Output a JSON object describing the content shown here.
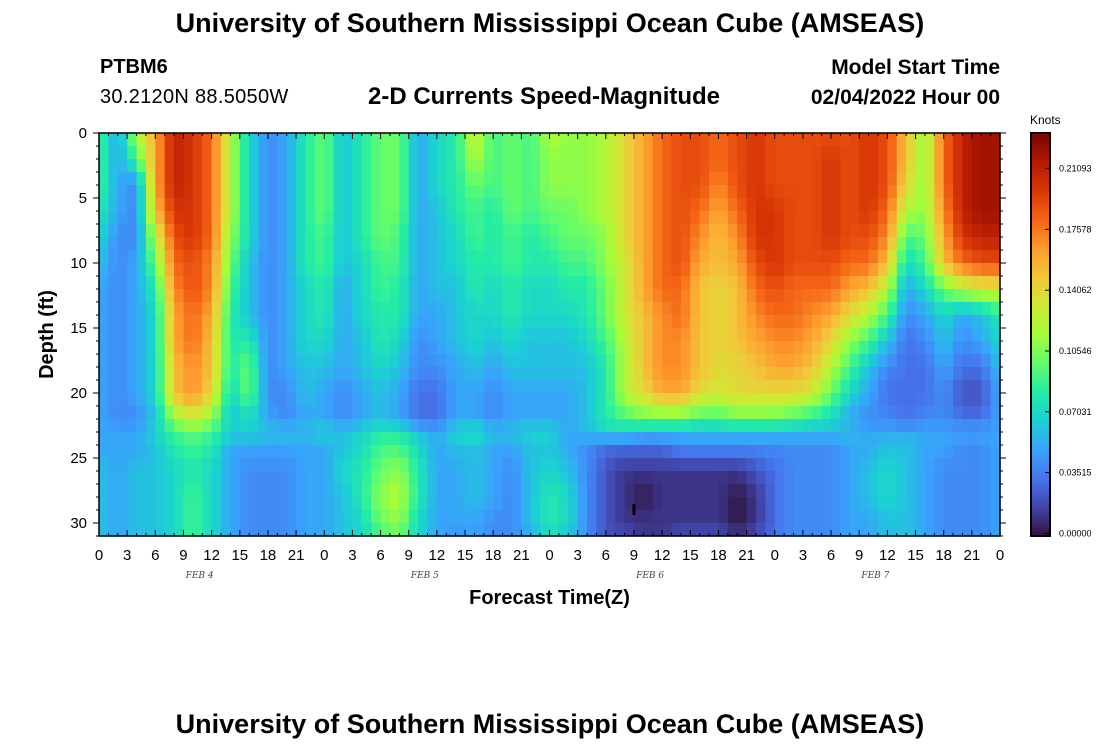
{
  "page": {
    "header_title": "University of Southern Mississippi Ocean Cube (AMSEAS)",
    "footer_title": "University of Southern Mississippi Ocean Cube (AMSEAS)",
    "station_id": "PTBM6",
    "station_coords": "30.2120N  88.5050W",
    "model_start_label": "Model Start Time",
    "model_start_value": "02/04/2022 Hour 00"
  },
  "colors": {
    "colormap": [
      "#30123b",
      "#4145ab",
      "#4675ed",
      "#39a2fc",
      "#1bcfd4",
      "#24eca6",
      "#61fc6c",
      "#a4fc3b",
      "#d1e834",
      "#f3c63a",
      "#fe9b2d",
      "#f36315",
      "#d93806",
      "#b11901",
      "#7a0402"
    ]
  },
  "chart_data": {
    "type": "heatmap",
    "title": "2-D Currents Speed-Magnitude",
    "xlabel": "Forecast Time(Z)",
    "ylabel": "Depth (ft)",
    "colorbar_label": "Knots",
    "x_tick_labels": [
      "0",
      "3",
      "6",
      "9",
      "12",
      "15",
      "18",
      "21",
      "0",
      "3",
      "6",
      "9",
      "12",
      "15",
      "18",
      "21",
      "0",
      "3",
      "6",
      "9",
      "12",
      "15",
      "18",
      "21",
      "0",
      "3",
      "6",
      "9",
      "12",
      "15",
      "18",
      "21",
      "0"
    ],
    "x_range_hours": [
      0,
      96
    ],
    "day_labels": [
      {
        "label": "FEB 4",
        "hour": 12
      },
      {
        "label": "FEB 5",
        "hour": 36
      },
      {
        "label": "FEB 6",
        "hour": 60
      },
      {
        "label": "FEB 7",
        "hour": 84
      }
    ],
    "y_ticks": [
      0,
      5,
      10,
      15,
      20,
      25,
      30
    ],
    "y_range": [
      0,
      31
    ],
    "colorbar_ticks": [
      "0.21093",
      "0.17578",
      "0.14062",
      "0.10546",
      "0.07031",
      "0.03515",
      "0.00000"
    ],
    "colorbar_tick_values": [
      0.21093,
      0.17578,
      0.14062,
      0.10546,
      0.07031,
      0.03515,
      0.0
    ],
    "colorbar_range": [
      -0.0015,
      0.2315
    ],
    "depth_levels_ft": [
      0,
      2,
      4,
      6,
      8,
      10,
      12,
      14,
      16,
      18,
      20,
      22,
      23,
      24,
      26,
      28,
      30,
      31
    ],
    "time_hours": [
      0,
      2,
      4,
      6,
      8,
      10,
      12,
      14,
      16,
      18,
      20,
      22,
      24,
      26,
      28,
      30,
      32,
      34,
      36,
      38,
      40,
      42,
      44,
      46,
      48,
      50,
      52,
      54,
      56,
      58,
      60,
      62,
      64,
      66,
      68,
      70,
      72,
      74,
      76,
      78,
      80,
      82,
      84,
      86,
      88,
      90,
      92,
      94,
      96
    ],
    "speed_knots_rows": [
      [
        0.09,
        0.05,
        0.12,
        0.16,
        0.21,
        0.2,
        0.18,
        0.12,
        0.07,
        0.04,
        0.05,
        0.08,
        0.1,
        0.06,
        0.08,
        0.1,
        0.1,
        0.05,
        0.07,
        0.08,
        0.13,
        0.09,
        0.1,
        0.09,
        0.12,
        0.11,
        0.11,
        0.12,
        0.14,
        0.16,
        0.18,
        0.19,
        0.19,
        0.18,
        0.19,
        0.2,
        0.19,
        0.19,
        0.19,
        0.19,
        0.19,
        0.2,
        0.19,
        0.15,
        0.11,
        0.18,
        0.21,
        0.22,
        0.22
      ],
      [
        0.09,
        0.05,
        0.09,
        0.16,
        0.21,
        0.2,
        0.18,
        0.12,
        0.07,
        0.04,
        0.05,
        0.08,
        0.1,
        0.06,
        0.08,
        0.1,
        0.1,
        0.05,
        0.07,
        0.08,
        0.12,
        0.09,
        0.1,
        0.09,
        0.11,
        0.11,
        0.11,
        0.12,
        0.14,
        0.16,
        0.18,
        0.19,
        0.19,
        0.18,
        0.19,
        0.2,
        0.19,
        0.19,
        0.19,
        0.2,
        0.19,
        0.2,
        0.19,
        0.15,
        0.11,
        0.18,
        0.21,
        0.22,
        0.22
      ],
      [
        0.09,
        0.05,
        0.04,
        0.16,
        0.21,
        0.2,
        0.18,
        0.12,
        0.07,
        0.04,
        0.05,
        0.08,
        0.1,
        0.06,
        0.08,
        0.1,
        0.1,
        0.05,
        0.07,
        0.08,
        0.1,
        0.09,
        0.1,
        0.09,
        0.11,
        0.11,
        0.11,
        0.12,
        0.14,
        0.16,
        0.18,
        0.19,
        0.19,
        0.17,
        0.19,
        0.2,
        0.19,
        0.19,
        0.19,
        0.2,
        0.19,
        0.2,
        0.19,
        0.14,
        0.11,
        0.18,
        0.21,
        0.22,
        0.22
      ],
      [
        0.08,
        0.05,
        0.04,
        0.15,
        0.2,
        0.2,
        0.18,
        0.12,
        0.07,
        0.04,
        0.05,
        0.08,
        0.1,
        0.06,
        0.08,
        0.1,
        0.1,
        0.05,
        0.06,
        0.08,
        0.09,
        0.08,
        0.1,
        0.09,
        0.1,
        0.1,
        0.11,
        0.12,
        0.14,
        0.16,
        0.18,
        0.19,
        0.18,
        0.16,
        0.18,
        0.2,
        0.2,
        0.19,
        0.19,
        0.2,
        0.19,
        0.2,
        0.18,
        0.12,
        0.11,
        0.17,
        0.21,
        0.22,
        0.22
      ],
      [
        0.07,
        0.04,
        0.04,
        0.12,
        0.19,
        0.2,
        0.18,
        0.11,
        0.07,
        0.04,
        0.05,
        0.08,
        0.09,
        0.06,
        0.08,
        0.1,
        0.09,
        0.05,
        0.06,
        0.07,
        0.09,
        0.08,
        0.09,
        0.08,
        0.09,
        0.1,
        0.1,
        0.11,
        0.14,
        0.16,
        0.18,
        0.19,
        0.17,
        0.15,
        0.17,
        0.2,
        0.2,
        0.19,
        0.19,
        0.2,
        0.19,
        0.19,
        0.17,
        0.09,
        0.1,
        0.16,
        0.2,
        0.21,
        0.21
      ],
      [
        0.06,
        0.04,
        0.05,
        0.1,
        0.18,
        0.19,
        0.17,
        0.1,
        0.06,
        0.04,
        0.05,
        0.08,
        0.09,
        0.06,
        0.07,
        0.09,
        0.09,
        0.05,
        0.06,
        0.07,
        0.08,
        0.08,
        0.09,
        0.08,
        0.08,
        0.09,
        0.09,
        0.11,
        0.13,
        0.16,
        0.18,
        0.19,
        0.16,
        0.15,
        0.16,
        0.19,
        0.2,
        0.19,
        0.19,
        0.19,
        0.18,
        0.18,
        0.15,
        0.07,
        0.09,
        0.15,
        0.18,
        0.19,
        0.19
      ],
      [
        0.05,
        0.04,
        0.05,
        0.08,
        0.17,
        0.19,
        0.17,
        0.09,
        0.06,
        0.04,
        0.05,
        0.07,
        0.08,
        0.05,
        0.07,
        0.09,
        0.08,
        0.05,
        0.06,
        0.06,
        0.08,
        0.07,
        0.08,
        0.07,
        0.07,
        0.08,
        0.08,
        0.1,
        0.13,
        0.16,
        0.18,
        0.18,
        0.15,
        0.14,
        0.15,
        0.18,
        0.19,
        0.18,
        0.18,
        0.18,
        0.16,
        0.15,
        0.12,
        0.05,
        0.07,
        0.1,
        0.12,
        0.13,
        0.13
      ],
      [
        0.05,
        0.04,
        0.05,
        0.07,
        0.16,
        0.18,
        0.16,
        0.08,
        0.06,
        0.04,
        0.05,
        0.07,
        0.08,
        0.05,
        0.07,
        0.08,
        0.08,
        0.05,
        0.05,
        0.06,
        0.07,
        0.07,
        0.08,
        0.07,
        0.07,
        0.07,
        0.08,
        0.1,
        0.13,
        0.15,
        0.17,
        0.18,
        0.15,
        0.14,
        0.15,
        0.17,
        0.18,
        0.18,
        0.17,
        0.16,
        0.14,
        0.12,
        0.09,
        0.04,
        0.05,
        0.07,
        0.05,
        0.06,
        0.08
      ],
      [
        0.05,
        0.04,
        0.05,
        0.07,
        0.16,
        0.18,
        0.15,
        0.08,
        0.08,
        0.04,
        0.05,
        0.07,
        0.07,
        0.05,
        0.06,
        0.08,
        0.07,
        0.04,
        0.05,
        0.06,
        0.07,
        0.06,
        0.07,
        0.06,
        0.06,
        0.06,
        0.07,
        0.09,
        0.12,
        0.15,
        0.17,
        0.17,
        0.15,
        0.14,
        0.15,
        0.16,
        0.17,
        0.17,
        0.16,
        0.14,
        0.11,
        0.09,
        0.06,
        0.03,
        0.04,
        0.06,
        0.04,
        0.05,
        0.07
      ],
      [
        0.05,
        0.04,
        0.05,
        0.07,
        0.15,
        0.17,
        0.15,
        0.08,
        0.1,
        0.04,
        0.05,
        0.06,
        0.06,
        0.05,
        0.06,
        0.07,
        0.06,
        0.04,
        0.04,
        0.05,
        0.06,
        0.05,
        0.06,
        0.06,
        0.06,
        0.06,
        0.06,
        0.08,
        0.12,
        0.15,
        0.17,
        0.17,
        0.15,
        0.14,
        0.14,
        0.15,
        0.16,
        0.16,
        0.15,
        0.12,
        0.09,
        0.06,
        0.04,
        0.03,
        0.03,
        0.05,
        0.03,
        0.03,
        0.06
      ],
      [
        0.05,
        0.04,
        0.05,
        0.07,
        0.15,
        0.17,
        0.14,
        0.07,
        0.1,
        0.04,
        0.04,
        0.06,
        0.05,
        0.04,
        0.05,
        0.06,
        0.05,
        0.03,
        0.03,
        0.05,
        0.05,
        0.04,
        0.05,
        0.05,
        0.05,
        0.05,
        0.06,
        0.08,
        0.12,
        0.14,
        0.16,
        0.16,
        0.14,
        0.13,
        0.14,
        0.14,
        0.14,
        0.14,
        0.13,
        0.1,
        0.07,
        0.05,
        0.03,
        0.03,
        0.03,
        0.04,
        0.02,
        0.02,
        0.05
      ],
      [
        0.05,
        0.04,
        0.04,
        0.06,
        0.11,
        0.13,
        0.11,
        0.06,
        0.07,
        0.05,
        0.04,
        0.05,
        0.05,
        0.04,
        0.05,
        0.06,
        0.05,
        0.03,
        0.03,
        0.05,
        0.05,
        0.04,
        0.05,
        0.05,
        0.05,
        0.05,
        0.06,
        0.08,
        0.09,
        0.1,
        0.1,
        0.1,
        0.09,
        0.09,
        0.1,
        0.1,
        0.1,
        0.09,
        0.08,
        0.07,
        0.05,
        0.04,
        0.04,
        0.03,
        0.04,
        0.04,
        0.03,
        0.03,
        0.05
      ],
      [
        0.05,
        0.05,
        0.05,
        0.07,
        0.09,
        0.1,
        0.09,
        0.07,
        0.07,
        0.06,
        0.06,
        0.06,
        0.07,
        0.06,
        0.07,
        0.08,
        0.08,
        0.06,
        0.05,
        0.07,
        0.08,
        0.06,
        0.06,
        0.07,
        0.07,
        0.05,
        0.06,
        0.07,
        0.07,
        0.06,
        0.06,
        0.06,
        0.06,
        0.06,
        0.06,
        0.06,
        0.06,
        0.06,
        0.06,
        0.06,
        0.06,
        0.05,
        0.05,
        0.05,
        0.05,
        0.05,
        0.05,
        0.05,
        0.05
      ],
      [
        0.05,
        0.05,
        0.05,
        0.06,
        0.08,
        0.09,
        0.08,
        0.05,
        0.05,
        0.05,
        0.05,
        0.05,
        0.05,
        0.06,
        0.07,
        0.09,
        0.09,
        0.07,
        0.05,
        0.06,
        0.06,
        0.05,
        0.05,
        0.06,
        0.06,
        0.05,
        0.04,
        0.03,
        0.03,
        0.03,
        0.03,
        0.04,
        0.04,
        0.04,
        0.04,
        0.04,
        0.04,
        0.04,
        0.04,
        0.04,
        0.05,
        0.05,
        0.06,
        0.06,
        0.05,
        0.05,
        0.04,
        0.04,
        0.05
      ],
      [
        0.06,
        0.05,
        0.06,
        0.06,
        0.07,
        0.08,
        0.07,
        0.05,
        0.04,
        0.04,
        0.04,
        0.05,
        0.05,
        0.07,
        0.08,
        0.1,
        0.11,
        0.08,
        0.05,
        0.05,
        0.06,
        0.05,
        0.04,
        0.06,
        0.07,
        0.06,
        0.04,
        0.02,
        0.01,
        0.01,
        0.01,
        0.01,
        0.01,
        0.01,
        0.01,
        0.02,
        0.03,
        0.04,
        0.04,
        0.04,
        0.05,
        0.06,
        0.07,
        0.06,
        0.05,
        0.04,
        0.04,
        0.04,
        0.05
      ],
      [
        0.06,
        0.05,
        0.06,
        0.06,
        0.07,
        0.09,
        0.07,
        0.05,
        0.04,
        0.04,
        0.04,
        0.05,
        0.05,
        0.06,
        0.08,
        0.11,
        0.12,
        0.08,
        0.05,
        0.05,
        0.06,
        0.05,
        0.04,
        0.06,
        0.08,
        0.07,
        0.04,
        0.02,
        0.01,
        0.0,
        0.01,
        0.01,
        0.01,
        0.01,
        0.0,
        0.01,
        0.03,
        0.04,
        0.04,
        0.04,
        0.05,
        0.06,
        0.07,
        0.06,
        0.05,
        0.04,
        0.04,
        0.04,
        0.05
      ],
      [
        0.06,
        0.05,
        0.06,
        0.06,
        0.07,
        0.09,
        0.07,
        0.05,
        0.04,
        0.04,
        0.04,
        0.05,
        0.05,
        0.06,
        0.07,
        0.1,
        0.11,
        0.07,
        0.05,
        0.05,
        0.05,
        0.04,
        0.04,
        0.06,
        0.08,
        0.07,
        0.04,
        0.02,
        0.01,
        0.01,
        0.01,
        0.01,
        0.01,
        0.01,
        0.0,
        0.01,
        0.03,
        0.04,
        0.04,
        0.04,
        0.05,
        0.05,
        0.06,
        0.06,
        0.05,
        0.04,
        0.04,
        0.04,
        0.05
      ],
      [
        0.06,
        0.05,
        0.06,
        0.06,
        0.07,
        0.09,
        0.07,
        0.05,
        0.04,
        0.04,
        0.04,
        0.05,
        0.05,
        0.06,
        0.07,
        0.09,
        0.1,
        0.07,
        0.05,
        0.04,
        0.05,
        0.04,
        0.04,
        0.05,
        0.07,
        0.06,
        0.04,
        0.02,
        0.02,
        0.01,
        0.01,
        0.02,
        0.02,
        0.02,
        0.01,
        0.02,
        0.03,
        0.04,
        0.04,
        0.04,
        0.05,
        0.05,
        0.06,
        0.06,
        0.05,
        0.04,
        0.04,
        0.04,
        0.05
      ]
    ],
    "marker": {
      "hour": 57,
      "depth_ft": 29
    }
  }
}
